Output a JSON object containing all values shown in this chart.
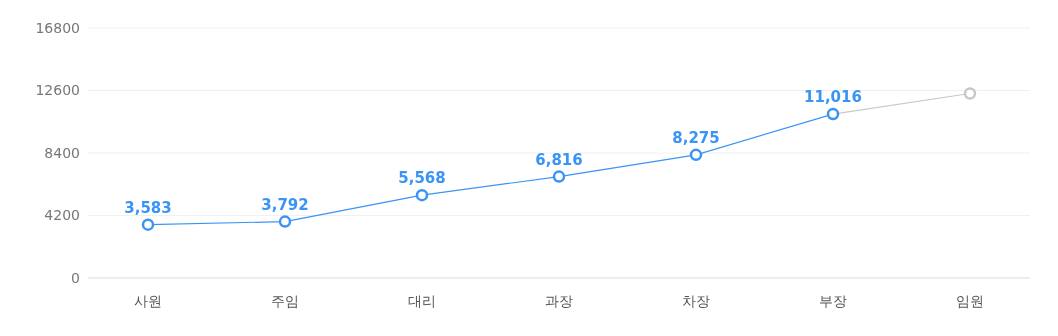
{
  "chart_data": {
    "type": "line",
    "categories": [
      "사원",
      "주임",
      "대리",
      "과장",
      "차장",
      "부장",
      "임원"
    ],
    "series": [
      {
        "color": "#c8c8c8",
        "values": [
          null,
          null,
          null,
          null,
          null,
          11016,
          12400
        ]
      },
      {
        "color": "#3a94f5",
        "values": [
          3583,
          3792,
          5568,
          6816,
          8275,
          11016,
          null
        ],
        "value_labels": [
          "3,583",
          "3,792",
          "5,568",
          "6,816",
          "8,275",
          "11,016",
          null
        ]
      }
    ],
    "ylim": [
      0,
      16800
    ],
    "yticks": [
      0,
      4200,
      8400,
      12600,
      16800
    ],
    "grid": "y",
    "marker": "circle",
    "line_style": "solid"
  }
}
